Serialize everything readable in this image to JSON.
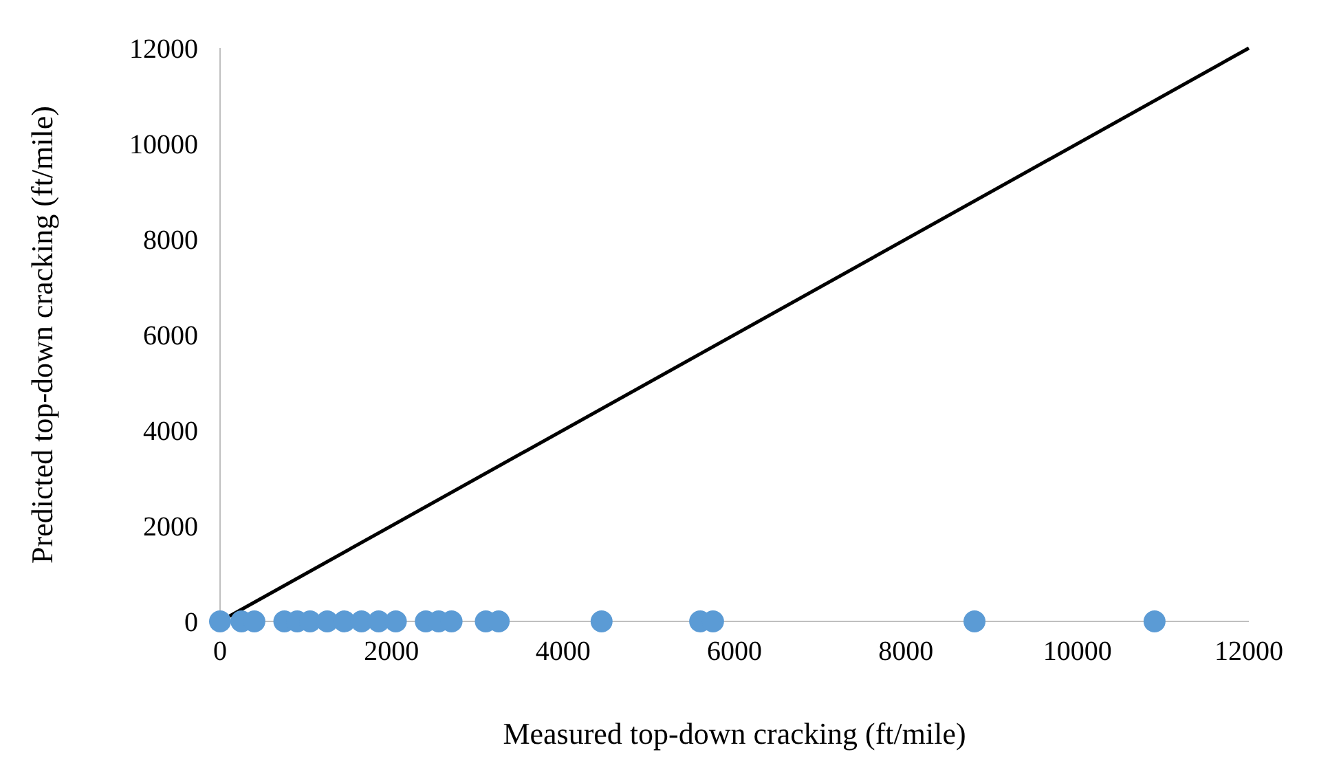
{
  "chart_data": {
    "type": "scatter",
    "xlabel": "Measured top-down cracking (ft/mile)",
    "ylabel": "Predicted top-down cracking (ft/mile)",
    "xlim": [
      0,
      12000
    ],
    "xticks": [
      0,
      2000,
      4000,
      6000,
      8000,
      10000,
      12000
    ],
    "ylim": [
      0,
      12000
    ],
    "yticks": [
      0,
      2000,
      4000,
      6000,
      8000,
      10000,
      12000
    ],
    "series": [
      {
        "type": "line",
        "color": "#000000",
        "x": [
          0,
          12000
        ],
        "values": [
          0,
          12000
        ]
      },
      {
        "marker": "circle",
        "color": "#5b9bd5",
        "x": [
          0,
          250,
          400,
          750,
          900,
          1050,
          1250,
          1450,
          1650,
          1850,
          2050,
          2400,
          2550,
          2700,
          3100,
          3250,
          4450,
          5600,
          5750,
          8800,
          10900
        ],
        "values": [
          0,
          0,
          0,
          0,
          0,
          0,
          0,
          0,
          0,
          0,
          0,
          0,
          0,
          0,
          0,
          0,
          0,
          0,
          0,
          0,
          0
        ]
      }
    ]
  }
}
